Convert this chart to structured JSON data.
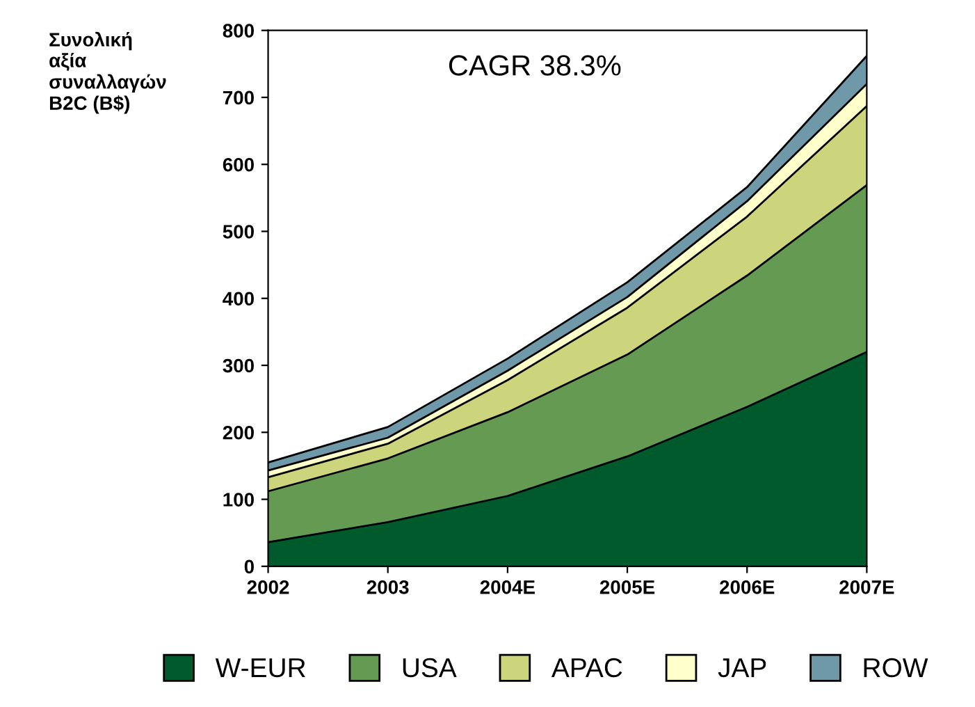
{
  "chart_data": {
    "type": "area",
    "stacked": true,
    "ylabel": "Συνολική\nαξία\nσυναλλαγών\nB2C (B$)",
    "annotations": [
      "CAGR 38.3%"
    ],
    "categories": [
      "2002",
      "2003",
      "2004E",
      "2005E",
      "2006E",
      "2007E"
    ],
    "series": [
      {
        "name": "W-EUR",
        "color": "#005a2b",
        "values": [
          36,
          66,
          105,
          164,
          238,
          320
        ]
      },
      {
        "name": "USA",
        "color": "#659a52",
        "values": [
          76,
          95,
          125,
          152,
          196,
          249
        ]
      },
      {
        "name": "APAC",
        "color": "#ccd57c",
        "values": [
          21,
          22,
          48,
          70,
          88,
          118
        ]
      },
      {
        "name": "JAP",
        "color": "#ffffcc",
        "values": [
          10,
          9,
          14,
          16,
          23,
          33
        ]
      },
      {
        "name": "ROW",
        "color": "#6f99a8",
        "values": [
          12,
          16,
          18,
          22,
          21,
          42
        ]
      }
    ],
    "ylim": [
      0,
      800
    ],
    "yticks": [
      0,
      100,
      200,
      300,
      400,
      500,
      600,
      700,
      800
    ],
    "grid": false,
    "legend": "bottom"
  }
}
